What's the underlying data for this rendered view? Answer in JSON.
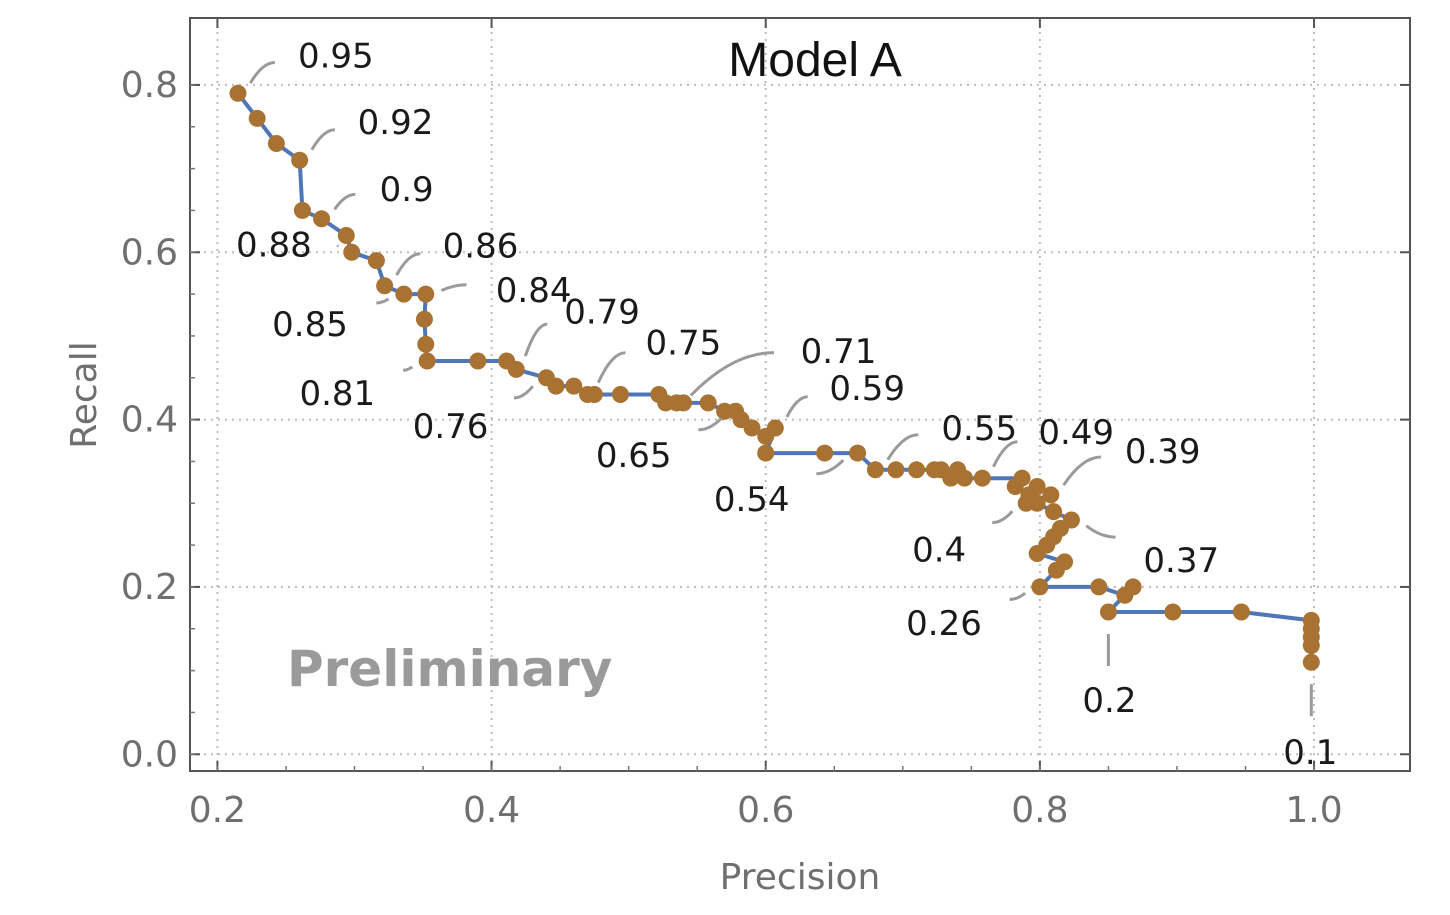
{
  "chart_data": {
    "type": "line",
    "title": "Model A",
    "xlabel": "Precision",
    "ylabel": "Recall",
    "xlim": [
      0.18,
      1.07
    ],
    "ylim": [
      -0.02,
      0.88
    ],
    "x_ticks": [
      "0.2",
      "0.4",
      "0.6",
      "0.8",
      "1.0"
    ],
    "y_ticks": [
      "0.0",
      "0.2",
      "0.4",
      "0.6",
      "0.8"
    ],
    "grid": "dotted",
    "watermark": "Preliminary",
    "line_color": "#4f76b8",
    "marker_color": "#a87232",
    "points": [
      [
        0.215,
        0.79
      ],
      [
        0.229,
        0.76
      ],
      [
        0.243,
        0.73
      ],
      [
        0.26,
        0.71
      ],
      [
        0.262,
        0.65
      ],
      [
        0.276,
        0.64
      ],
      [
        0.294,
        0.62
      ],
      [
        0.298,
        0.6
      ],
      [
        0.316,
        0.59
      ],
      [
        0.322,
        0.56
      ],
      [
        0.336,
        0.55
      ],
      [
        0.352,
        0.55
      ],
      [
        0.351,
        0.52
      ],
      [
        0.352,
        0.49
      ],
      [
        0.353,
        0.47
      ],
      [
        0.39,
        0.47
      ],
      [
        0.411,
        0.47
      ],
      [
        0.418,
        0.46
      ],
      [
        0.44,
        0.45
      ],
      [
        0.447,
        0.44
      ],
      [
        0.46,
        0.44
      ],
      [
        0.47,
        0.43
      ],
      [
        0.475,
        0.43
      ],
      [
        0.494,
        0.43
      ],
      [
        0.522,
        0.43
      ],
      [
        0.527,
        0.42
      ],
      [
        0.535,
        0.42
      ],
      [
        0.54,
        0.42
      ],
      [
        0.558,
        0.42
      ],
      [
        0.57,
        0.41
      ],
      [
        0.578,
        0.41
      ],
      [
        0.582,
        0.4
      ],
      [
        0.59,
        0.39
      ],
      [
        0.6,
        0.38
      ],
      [
        0.607,
        0.39
      ],
      [
        0.6,
        0.36
      ],
      [
        0.643,
        0.36
      ],
      [
        0.667,
        0.36
      ],
      [
        0.68,
        0.34
      ],
      [
        0.695,
        0.34
      ],
      [
        0.71,
        0.34
      ],
      [
        0.723,
        0.34
      ],
      [
        0.728,
        0.34
      ],
      [
        0.735,
        0.33
      ],
      [
        0.74,
        0.34
      ],
      [
        0.745,
        0.33
      ],
      [
        0.758,
        0.33
      ],
      [
        0.787,
        0.33
      ],
      [
        0.782,
        0.32
      ],
      [
        0.792,
        0.31
      ],
      [
        0.798,
        0.32
      ],
      [
        0.808,
        0.31
      ],
      [
        0.79,
        0.3
      ],
      [
        0.798,
        0.3
      ],
      [
        0.81,
        0.29
      ],
      [
        0.823,
        0.28
      ],
      [
        0.815,
        0.27
      ],
      [
        0.81,
        0.26
      ],
      [
        0.805,
        0.25
      ],
      [
        0.798,
        0.24
      ],
      [
        0.818,
        0.23
      ],
      [
        0.812,
        0.22
      ],
      [
        0.8,
        0.2
      ],
      [
        0.843,
        0.2
      ],
      [
        0.862,
        0.19
      ],
      [
        0.868,
        0.2
      ],
      [
        0.85,
        0.17
      ],
      [
        0.897,
        0.17
      ],
      [
        0.947,
        0.17
      ],
      [
        0.998,
        0.16
      ],
      [
        0.998,
        0.15
      ],
      [
        0.998,
        0.14
      ],
      [
        0.998,
        0.13
      ],
      [
        0.998,
        0.11
      ]
    ],
    "annotations": [
      {
        "text": "0.95",
        "x": 0.215,
        "y": 0.79
      },
      {
        "text": "0.92",
        "x": 0.26,
        "y": 0.71
      },
      {
        "text": "0.9",
        "x": 0.276,
        "y": 0.64
      },
      {
        "text": "0.88",
        "x": 0.298,
        "y": 0.6
      },
      {
        "text": "0.86",
        "x": 0.322,
        "y": 0.56
      },
      {
        "text": "0.85",
        "x": 0.336,
        "y": 0.55
      },
      {
        "text": "0.84",
        "x": 0.352,
        "y": 0.55
      },
      {
        "text": "0.81",
        "x": 0.353,
        "y": 0.47
      },
      {
        "text": "0.79",
        "x": 0.418,
        "y": 0.46
      },
      {
        "text": "0.76",
        "x": 0.44,
        "y": 0.45
      },
      {
        "text": "0.75",
        "x": 0.47,
        "y": 0.43
      },
      {
        "text": "0.71",
        "x": 0.535,
        "y": 0.42
      },
      {
        "text": "0.65",
        "x": 0.578,
        "y": 0.41
      },
      {
        "text": "0.59",
        "x": 0.607,
        "y": 0.39
      },
      {
        "text": "0.55",
        "x": 0.68,
        "y": 0.34
      },
      {
        "text": "0.54",
        "x": 0.667,
        "y": 0.36
      },
      {
        "text": "0.49",
        "x": 0.758,
        "y": 0.33
      },
      {
        "text": "0.39",
        "x": 0.808,
        "y": 0.31
      },
      {
        "text": "0.4",
        "x": 0.79,
        "y": 0.3
      },
      {
        "text": "0.37",
        "x": 0.823,
        "y": 0.28
      },
      {
        "text": "0.26",
        "x": 0.8,
        "y": 0.2
      },
      {
        "text": "0.2",
        "x": 0.85,
        "y": 0.17
      },
      {
        "text": "0.1",
        "x": 0.998,
        "y": 0.11
      }
    ]
  }
}
